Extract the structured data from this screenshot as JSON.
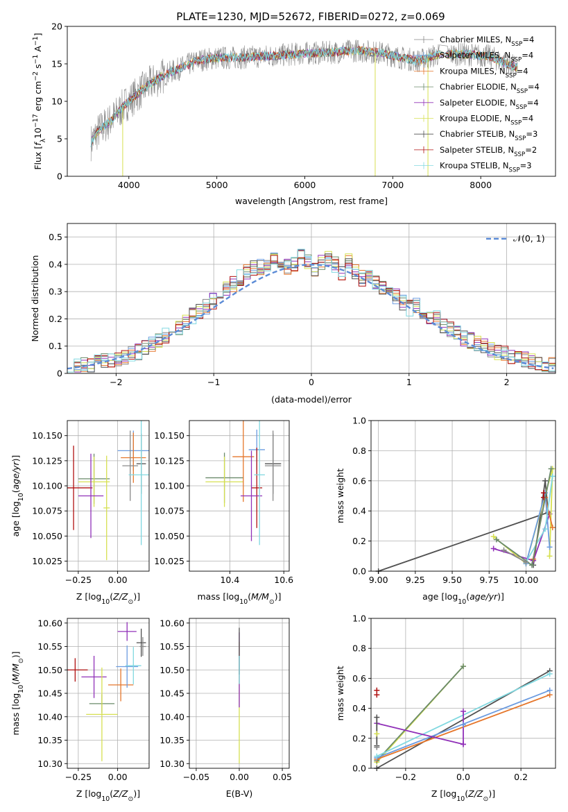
{
  "figure_title": "PLATE=1230, MJD=52672, FIBERID=0272, z=0.069",
  "colors": {
    "Chabrier MILES": "#888888",
    "Salpeter MILES": "#6b9be0",
    "Kroupa MILES": "#e5762b",
    "Chabrier ELODIE": "#6a8a6a",
    "Salpeter ELODIE": "#9030b8",
    "Kroupa ELODIE": "#d6e050",
    "Chabrier STELIB": "#505050",
    "Salpeter STELIB": "#b01010",
    "Kroupa STELIB": "#80d8e0",
    "model_line": "#5b8bd6"
  },
  "chart_data": [
    {
      "id": "spectrum",
      "type": "line",
      "xlabel": "wavelength [Angstrom, rest frame]",
      "ylabel": "Flux [f_λ10^-17 erg cm^-2 s^-1 A^-1]",
      "xlim": [
        3300,
        8850
      ],
      "ylim": [
        0,
        20
      ],
      "xticks": [
        4000,
        5000,
        6000,
        7000,
        8000
      ],
      "yticks": [
        0,
        5,
        10,
        15,
        20
      ],
      "grid": false,
      "legend_position": "upper-right",
      "legend": [
        {
          "prefix": "Chabrier MILES, N",
          "sub": "SSP",
          "suffix": "=4"
        },
        {
          "prefix": "Salpeter MILES, N",
          "sub": "SSP",
          "suffix": "=4"
        },
        {
          "prefix": "Kroupa MILES, N",
          "sub": "SSP",
          "suffix": "=4"
        },
        {
          "prefix": "Chabrier ELODIE, N",
          "sub": "SSP",
          "suffix": "=4"
        },
        {
          "prefix": "Salpeter ELODIE, N",
          "sub": "SSP",
          "suffix": "=4"
        },
        {
          "prefix": "Kroupa ELODIE, N",
          "sub": "SSP",
          "suffix": "=4"
        },
        {
          "prefix": "Chabrier STELIB, N",
          "sub": "SSP",
          "suffix": "=3"
        },
        {
          "prefix": "Salpeter STELIB, N",
          "sub": "SSP",
          "suffix": "=2"
        },
        {
          "prefix": "Kroupa STELIB, N",
          "sub": "SSP",
          "suffix": "=3"
        }
      ],
      "continuum": [
        [
          3570,
          4.5
        ],
        [
          3650,
          6
        ],
        [
          3800,
          7.5
        ],
        [
          3950,
          9.5
        ],
        [
          4050,
          10.5
        ],
        [
          4200,
          12
        ],
        [
          4400,
          13.5
        ],
        [
          4600,
          14.5
        ],
        [
          4800,
          15.5
        ],
        [
          5000,
          15.8
        ],
        [
          5200,
          15.8
        ],
        [
          5500,
          16
        ],
        [
          5800,
          16.2
        ],
        [
          6000,
          16.4
        ],
        [
          6300,
          16.5
        ],
        [
          6600,
          16.8
        ],
        [
          6900,
          16.4
        ],
        [
          7100,
          15.8
        ],
        [
          7300,
          15.4
        ],
        [
          7500,
          16.2
        ],
        [
          7800,
          16.3
        ],
        [
          8100,
          16
        ],
        [
          8300,
          15
        ],
        [
          8420,
          14.5
        ]
      ],
      "gap_range": [
        7530,
        7620
      ],
      "dropouts": [
        3930,
        6800,
        7400
      ]
    },
    {
      "id": "residuals",
      "type": "step",
      "xlabel": "(data-model)/error",
      "ylabel": "Normed distribution",
      "xlim": [
        -2.5,
        2.5
      ],
      "ylim": [
        0,
        0.55
      ],
      "xticks": [
        -2,
        -1,
        0,
        1,
        2
      ],
      "yticks": [
        0.0,
        0.1,
        0.2,
        0.3,
        0.4,
        0.5
      ],
      "grid": true,
      "legend_label": "𝒩(0, 1)",
      "legend_position": "upper-right",
      "bin_width": 0.1,
      "bin_edges_start": -2.5,
      "base": [
        0.02,
        0.025,
        0.03,
        0.035,
        0.04,
        0.045,
        0.05,
        0.055,
        0.06,
        0.07,
        0.08,
        0.095,
        0.11,
        0.125,
        0.14,
        0.155,
        0.17,
        0.19,
        0.21,
        0.23,
        0.245,
        0.265,
        0.29,
        0.31,
        0.33,
        0.35,
        0.37,
        0.385,
        0.39,
        0.4,
        0.43,
        0.4,
        0.39,
        0.4,
        0.43,
        0.41,
        0.38,
        0.41,
        0.42,
        0.4,
        0.37,
        0.41,
        0.37,
        0.35,
        0.36,
        0.33,
        0.32,
        0.3,
        0.28,
        0.26,
        0.24,
        0.25,
        0.21,
        0.2,
        0.2,
        0.17,
        0.16,
        0.15,
        0.13,
        0.12,
        0.11,
        0.1,
        0.09,
        0.08,
        0.07,
        0.06,
        0.055,
        0.05,
        0.045,
        0.04,
        0.035,
        0.03
      ]
    },
    {
      "id": "Z_vs_age",
      "type": "errorbar",
      "xlabel": "Z [log10(Z/Z⊙)]",
      "ylabel": "age [log10(age/yr)]",
      "xlim": [
        -0.32,
        0.2
      ],
      "ylim": [
        10.015,
        10.165
      ],
      "xticks": [
        -0.25,
        0.0
      ],
      "xticklabels": [
        "-0.25",
        "0.00"
      ],
      "yticks": [
        10.025,
        10.05,
        10.075,
        10.1,
        10.125,
        10.15
      ],
      "yticklabels": [
        "10.025",
        "10.050",
        "10.075",
        "10.100",
        "10.125",
        "10.150"
      ],
      "grid": true,
      "points": [
        {
          "s": "Salpeter STELIB",
          "x": -0.28,
          "xe": 0.12,
          "y": 10.098,
          "ye": 0.042
        },
        {
          "s": "Chabrier ELODIE",
          "x": -0.15,
          "xe": 0.1,
          "y": 10.107,
          "ye": 0.025
        },
        {
          "s": "Kroupa ELODIE",
          "x": -0.15,
          "xe": 0.1,
          "y": 10.104,
          "ye": 0.025
        },
        {
          "s": "Salpeter ELODIE",
          "x": -0.17,
          "xe": 0.08,
          "y": 10.09,
          "ye": 0.042
        },
        {
          "s": "Kroupa ELODIE",
          "x": -0.07,
          "xe": 0.02,
          "y": 10.078,
          "ye": 0.052
        },
        {
          "s": "Salpeter MILES",
          "x": 0.1,
          "xe": 0.1,
          "y": 10.135,
          "ye": 0.02
        },
        {
          "s": "Kroupa MILES",
          "x": 0.1,
          "xe": 0.08,
          "y": 10.128,
          "ye": 0.025
        },
        {
          "s": "Chabrier MILES",
          "x": 0.08,
          "xe": 0.05,
          "y": 10.12,
          "ye": 0.035
        },
        {
          "s": "Chabrier STELIB",
          "x": 0.15,
          "xe": 0.03,
          "y": 10.122,
          "ye": 0.03
        },
        {
          "s": "Kroupa STELIB",
          "x": 0.15,
          "xe": 0.08,
          "y": 10.111,
          "ye": 0.07
        }
      ]
    },
    {
      "id": "mass_vs_age",
      "type": "errorbar",
      "xlabel": "mass [log10(M/M⊙)]",
      "xlim": [
        10.25,
        10.62
      ],
      "ylim": [
        10.015,
        10.165
      ],
      "xticks": [
        10.4,
        10.6
      ],
      "xticklabels": [
        "10.4",
        "10.6"
      ],
      "yticks": [
        10.025,
        10.05,
        10.075,
        10.1,
        10.125,
        10.15
      ],
      "yticklabels": [
        "10.025",
        "10.050",
        "10.075",
        "10.100",
        "10.125",
        "10.150"
      ],
      "grid": true,
      "points": [
        {
          "s": "Chabrier ELODIE",
          "x": 10.38,
          "xe": 0.07,
          "y": 10.108,
          "ye": 0.025
        },
        {
          "s": "Kroupa ELODIE",
          "x": 10.38,
          "xe": 0.07,
          "y": 10.104,
          "ye": 0.025
        },
        {
          "s": "Kroupa MILES",
          "x": 10.45,
          "xe": 0.04,
          "y": 10.129,
          "ye": 0.045
        },
        {
          "s": "Salpeter MILES",
          "x": 10.5,
          "xe": 0.03,
          "y": 10.136,
          "ye": 0.02
        },
        {
          "s": "Salpeter STELIB",
          "x": 10.5,
          "xe": 0.02,
          "y": 10.098,
          "ye": 0.04
        },
        {
          "s": "Salpeter ELODIE",
          "x": 10.48,
          "xe": 0.04,
          "y": 10.09,
          "ye": 0.045
        },
        {
          "s": "Kroupa STELIB",
          "x": 10.51,
          "xe": 0.02,
          "y": 10.111,
          "ye": 0.07
        },
        {
          "s": "Chabrier STELIB",
          "x": 10.56,
          "xe": 0.03,
          "y": 10.122,
          "ye": 0.03
        },
        {
          "s": "Chabrier MILES",
          "x": 10.56,
          "xe": 0.03,
          "y": 10.12,
          "ye": 0.035
        }
      ]
    },
    {
      "id": "age_mass_weight",
      "type": "line",
      "xlabel": "age [log10(age/yr)]",
      "ylabel": "mass weight",
      "xlim": [
        8.95,
        10.2
      ],
      "ylim": [
        0,
        1
      ],
      "xticks": [
        9.0,
        9.25,
        9.5,
        9.75,
        10.0
      ],
      "xticklabels": [
        "9.00",
        "9.25",
        "9.50",
        "9.75",
        "10.00"
      ],
      "yticks": [
        0,
        0.2,
        0.4,
        0.6,
        0.8,
        1.0
      ],
      "yticklabels": [
        "0.0",
        "0.2",
        "0.4",
        "0.6",
        "0.8",
        "1.0"
      ],
      "grid": true,
      "series": [
        {
          "s": "Chabrier STELIB",
          "x": [
            9.0,
            10.15,
            10.13,
            10.05
          ],
          "y": [
            0.0,
            0.39,
            0.6,
            0.04
          ]
        },
        {
          "s": "Salpeter ELODIE",
          "x": [
            9.78,
            10.05,
            10.16
          ],
          "y": [
            0.15,
            0.07,
            0.38
          ]
        },
        {
          "s": "Kroupa ELODIE",
          "x": [
            9.78,
            10.0,
            10.18,
            10.16
          ],
          "y": [
            0.23,
            0.05,
            0.68,
            0.1
          ]
        },
        {
          "s": "Kroupa MILES",
          "x": [
            10.05,
            10.13,
            10.18
          ],
          "y": [
            0.08,
            0.49,
            0.29
          ]
        },
        {
          "s": "Salpeter MILES",
          "x": [
            10.0,
            10.13,
            10.16
          ],
          "y": [
            0.05,
            0.52,
            0.16
          ]
        },
        {
          "s": "Kroupa STELIB",
          "x": [
            10.0,
            10.13,
            10.18
          ],
          "y": [
            0.06,
            0.28,
            0.63
          ]
        },
        {
          "s": "Salpeter STELIB",
          "x": [
            10.12,
            10.12
          ],
          "y": [
            0.49,
            0.52
          ]
        },
        {
          "s": "Chabrier ELODIE",
          "x": [
            9.8,
            10.04,
            10.17
          ],
          "y": [
            0.21,
            0.04,
            0.68
          ]
        },
        {
          "s": "Chabrier MILES",
          "x": [
            9.85,
            10.0
          ],
          "y": [
            0.14,
            0.06
          ]
        }
      ]
    },
    {
      "id": "Z_vs_mass",
      "type": "errorbar",
      "xlabel": "Z [log10(Z/Z⊙)]",
      "ylabel": "mass [log10(M/M⊙)]",
      "xlim": [
        -0.32,
        0.2
      ],
      "ylim": [
        10.29,
        10.61
      ],
      "xticks": [
        -0.25,
        0.0
      ],
      "xticklabels": [
        "-0.25",
        "0.00"
      ],
      "yticks": [
        10.3,
        10.35,
        10.4,
        10.45,
        10.5,
        10.55,
        10.6
      ],
      "yticklabels": [
        "10.30",
        "10.35",
        "10.40",
        "10.45",
        "10.50",
        "10.55",
        "10.60"
      ],
      "grid": true,
      "points": [
        {
          "s": "Salpeter STELIB",
          "x": -0.27,
          "xe": 0.08,
          "y": 10.5,
          "ye": 0.025
        },
        {
          "s": "Salpeter ELODIE",
          "x": -0.15,
          "xe": 0.08,
          "y": 10.485,
          "ye": 0.045
        },
        {
          "s": "Chabrier ELODIE",
          "x": -0.1,
          "xe": 0.08,
          "y": 10.428,
          "ye": 0.02
        },
        {
          "s": "Kroupa ELODIE",
          "x": -0.1,
          "xe": 0.1,
          "y": 10.405,
          "ye": 0.1
        },
        {
          "s": "Kroupa MILES",
          "x": 0.02,
          "xe": 0.08,
          "y": 10.468,
          "ye": 0.035
        },
        {
          "s": "Salpeter MILES",
          "x": 0.06,
          "xe": 0.07,
          "y": 10.507,
          "ye": 0.045
        },
        {
          "s": "Kroupa STELIB",
          "x": 0.1,
          "xe": 0.05,
          "y": 10.509,
          "ye": 0.04
        },
        {
          "s": "Salpeter ELODIE",
          "x": 0.06,
          "xe": 0.06,
          "y": 10.582,
          "ye": 0.02
        },
        {
          "s": "Chabrier STELIB",
          "x": 0.15,
          "xe": 0.03,
          "y": 10.558,
          "ye": 0.03
        },
        {
          "s": "Chabrier MILES",
          "x": 0.16,
          "xe": 0.02,
          "y": 10.55,
          "ye": 0.02
        }
      ]
    },
    {
      "id": "ebv_vs_mass",
      "type": "errorbar",
      "xlabel": "E(B-V)",
      "xlim": [
        -0.058,
        0.058
      ],
      "ylim": [
        10.29,
        10.61
      ],
      "xticks": [
        -0.05,
        0.0,
        0.05
      ],
      "xticklabels": [
        "-0.05",
        "0.00",
        "0.05"
      ],
      "yticks": [
        10.3,
        10.35,
        10.4,
        10.45,
        10.5,
        10.55,
        10.6
      ],
      "yticklabels": [
        "10.30",
        "10.35",
        "10.40",
        "10.45",
        "10.50",
        "10.55",
        "10.60"
      ],
      "grid": true,
      "points": [
        {
          "s": "Kroupa ELODIE",
          "x": 0.0,
          "xe": 0.0,
          "y": 10.43,
          "ye": 0.13
        },
        {
          "s": "Salpeter ELODIE",
          "x": 0.0,
          "xe": 0.0,
          "y": 10.5,
          "ye": 0.08
        },
        {
          "s": "Chabrier STELIB",
          "x": 0.0,
          "xe": 0.0,
          "y": 10.54,
          "ye": 0.05
        },
        {
          "s": "Kroupa STELIB",
          "x": 0.0,
          "xe": 0.0,
          "y": 10.5,
          "ye": 0.03
        }
      ]
    },
    {
      "id": "Z_mass_weight",
      "type": "line",
      "xlabel": "Z [log10(Z/Z⊙)]",
      "ylabel": "mass weight",
      "xlim": [
        -0.32,
        0.32
      ],
      "ylim": [
        0,
        1
      ],
      "xticks": [
        -0.2,
        0.0,
        0.2
      ],
      "xticklabels": [
        "-0.2",
        "0.0",
        "0.2"
      ],
      "yticks": [
        0,
        0.2,
        0.4,
        0.6,
        0.8,
        1.0
      ],
      "yticklabels": [
        "0.0",
        "0.2",
        "0.4",
        "0.6",
        "0.8",
        "1.0"
      ],
      "grid": true,
      "series": [
        {
          "s": "Chabrier STELIB",
          "x": [
            -0.3,
            0.3
          ],
          "y": [
            0.0,
            0.65
          ]
        },
        {
          "s": "Kroupa ELODIE",
          "x": [
            -0.3,
            0.0
          ],
          "y": [
            0.04,
            0.68
          ]
        },
        {
          "s": "Chabrier ELODIE",
          "x": [
            -0.3,
            0.0
          ],
          "y": [
            0.05,
            0.68
          ]
        },
        {
          "s": "Kroupa MILES",
          "x": [
            -0.3,
            0.3
          ],
          "y": [
            0.06,
            0.49
          ]
        },
        {
          "s": "Salpeter MILES",
          "x": [
            -0.3,
            0.3
          ],
          "y": [
            0.07,
            0.52
          ]
        },
        {
          "s": "Kroupa STELIB",
          "x": [
            -0.3,
            0.3
          ],
          "y": [
            0.08,
            0.63
          ]
        },
        {
          "s": "Salpeter ELODIE",
          "x": [
            -0.3,
            0.0
          ],
          "y": [
            0.3,
            0.16
          ]
        },
        {
          "s": "Salpeter ELODIE",
          "x": [
            0.0,
            0.0
          ],
          "y": [
            0.16,
            0.38
          ]
        },
        {
          "s": "Chabrier STELIB",
          "x": [
            -0.3,
            -0.3
          ],
          "y": [
            0.15,
            0.34
          ]
        }
      ],
      "markers": [
        {
          "s": "Salpeter STELIB",
          "x": -0.3,
          "y": 0.49
        },
        {
          "s": "Salpeter STELIB",
          "x": -0.3,
          "y": 0.52
        },
        {
          "s": "Kroupa ELODIE",
          "x": -0.3,
          "y": 0.23
        },
        {
          "s": "Chabrier MILES",
          "x": -0.3,
          "y": 0.14
        },
        {
          "s": "Salpeter MILES",
          "x": 0.0,
          "y": 0.29
        }
      ]
    }
  ]
}
